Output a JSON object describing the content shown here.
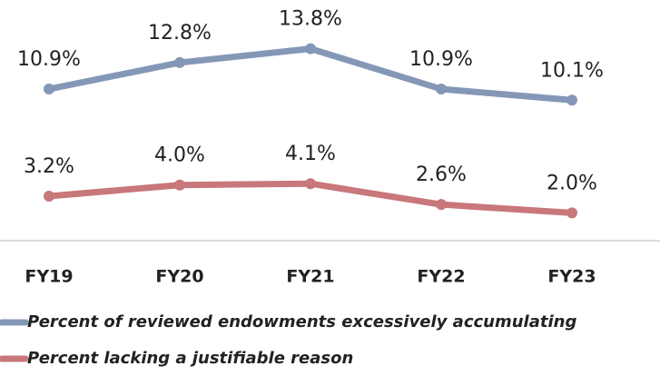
{
  "chart_data": {
    "type": "line",
    "categories": [
      "FY19",
      "FY20",
      "FY21",
      "FY22",
      "FY23"
    ],
    "series": [
      {
        "name": "Percent of reviewed endowments excessively accumulating",
        "color": "#8497b6",
        "values": [
          10.9,
          12.8,
          13.8,
          10.9,
          10.1
        ],
        "value_labels": [
          "10.9%",
          "12.8%",
          "13.8%",
          "10.9%",
          "10.1%"
        ]
      },
      {
        "name": "Percent lacking a justifiable reason",
        "color": "#c8777a",
        "values": [
          3.2,
          4.0,
          4.1,
          2.6,
          2.0
        ],
        "value_labels": [
          "3.2%",
          "4.0%",
          "4.1%",
          "2.6%",
          "2.0%"
        ]
      }
    ],
    "ylim": [
      0,
      17.3
    ]
  }
}
